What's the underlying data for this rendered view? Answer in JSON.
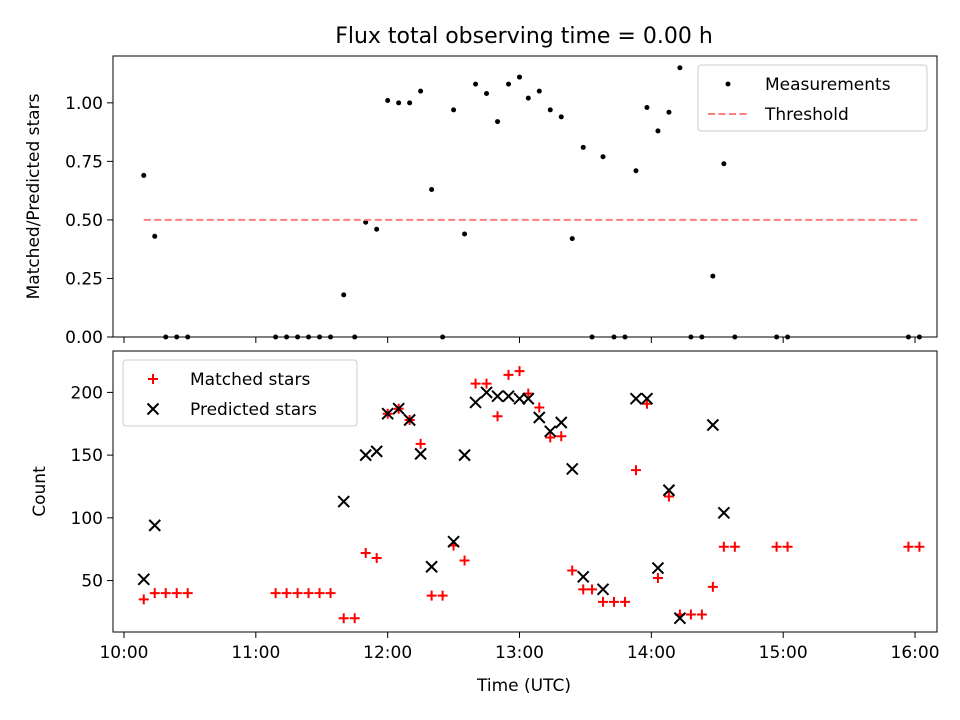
{
  "figure": {
    "title": "Flux total observing time = 0.00 h"
  },
  "chart_data": [
    {
      "type": "scatter",
      "ylabel": "Matched/Predicted stars",
      "xlabel": "",
      "xlim": [
        "09:55",
        "16:10"
      ],
      "ylim": [
        0,
        1.2
      ],
      "x_ticks": [
        "10:00",
        "11:00",
        "12:00",
        "13:00",
        "14:00",
        "15:00",
        "16:00"
      ],
      "y_ticks": [
        0,
        0.25,
        0.5,
        0.75,
        1.0
      ],
      "y_tick_labels": [
        "0.00",
        "0.25",
        "0.50",
        "0.75",
        "1.00"
      ],
      "grid": false,
      "legend_position": "upper right",
      "series": [
        {
          "name": "Measurements",
          "kind": "scatter",
          "marker": "dot",
          "color": "#000000",
          "points": [
            [
              "10:09",
              0.69
            ],
            [
              "10:14",
              0.43
            ],
            [
              "10:19",
              0.0
            ],
            [
              "10:24",
              0.0
            ],
            [
              "10:29",
              0.0
            ],
            [
              "11:09",
              0.0
            ],
            [
              "11:14",
              0.0
            ],
            [
              "11:19",
              0.0
            ],
            [
              "11:24",
              0.0
            ],
            [
              "11:29",
              0.0
            ],
            [
              "11:34",
              0.0
            ],
            [
              "11:40",
              0.18
            ],
            [
              "11:45",
              0.0
            ],
            [
              "11:50",
              0.49
            ],
            [
              "11:55",
              0.46
            ],
            [
              "12:00",
              1.01
            ],
            [
              "12:05",
              1.0
            ],
            [
              "12:10",
              1.0
            ],
            [
              "12:15",
              1.05
            ],
            [
              "12:20",
              0.63
            ],
            [
              "12:25",
              0.0
            ],
            [
              "12:30",
              0.97
            ],
            [
              "12:35",
              0.44
            ],
            [
              "12:40",
              1.08
            ],
            [
              "12:45",
              1.04
            ],
            [
              "12:50",
              0.92
            ],
            [
              "12:55",
              1.08
            ],
            [
              "13:00",
              1.11
            ],
            [
              "13:04",
              1.02
            ],
            [
              "13:09",
              1.05
            ],
            [
              "13:14",
              0.97
            ],
            [
              "13:19",
              0.94
            ],
            [
              "13:24",
              0.42
            ],
            [
              "13:29",
              0.81
            ],
            [
              "13:33",
              0.0
            ],
            [
              "13:38",
              0.77
            ],
            [
              "13:43",
              0.0
            ],
            [
              "13:48",
              0.0
            ],
            [
              "13:53",
              0.71
            ],
            [
              "13:58",
              0.98
            ],
            [
              "14:03",
              0.88
            ],
            [
              "14:08",
              0.96
            ],
            [
              "14:13",
              1.15
            ],
            [
              "14:18",
              0.0
            ],
            [
              "14:23",
              0.0
            ],
            [
              "14:28",
              0.26
            ],
            [
              "14:33",
              0.74
            ],
            [
              "14:38",
              0.0
            ],
            [
              "14:57",
              0.0
            ],
            [
              "15:02",
              0.0
            ],
            [
              "15:57",
              0.0
            ],
            [
              "16:02",
              0.0
            ]
          ]
        },
        {
          "name": "Threshold",
          "kind": "line",
          "style": "dashed",
          "color": "#ff7f7f",
          "points": [
            [
              "10:09",
              0.5
            ],
            [
              "16:02",
              0.5
            ]
          ]
        }
      ]
    },
    {
      "type": "scatter",
      "ylabel": "Count",
      "xlabel": "Time (UTC)",
      "xlim": [
        "09:55",
        "16:10"
      ],
      "ylim": [
        9,
        233
      ],
      "x_ticks": [
        "10:00",
        "11:00",
        "12:00",
        "13:00",
        "14:00",
        "15:00",
        "16:00"
      ],
      "y_ticks": [
        50,
        100,
        150,
        200
      ],
      "y_tick_labels": [
        "50",
        "100",
        "150",
        "200"
      ],
      "grid": false,
      "legend_position": "upper left",
      "series": [
        {
          "name": "Matched stars",
          "kind": "scatter",
          "marker": "plus",
          "color": "#ff0000",
          "points": [
            [
              "10:09",
              35
            ],
            [
              "10:14",
              40
            ],
            [
              "10:19",
              40
            ],
            [
              "10:24",
              40
            ],
            [
              "10:29",
              40
            ],
            [
              "11:09",
              40
            ],
            [
              "11:14",
              40
            ],
            [
              "11:19",
              40
            ],
            [
              "11:24",
              40
            ],
            [
              "11:29",
              40
            ],
            [
              "11:34",
              40
            ],
            [
              "11:40",
              20
            ],
            [
              "11:45",
              20
            ],
            [
              "11:50",
              72
            ],
            [
              "11:55",
              68
            ],
            [
              "12:00",
              183
            ],
            [
              "12:05",
              187
            ],
            [
              "12:10",
              178
            ],
            [
              "12:15",
              159
            ],
            [
              "12:20",
              38
            ],
            [
              "12:25",
              38
            ],
            [
              "12:30",
              78
            ],
            [
              "12:35",
              66
            ],
            [
              "12:40",
              207
            ],
            [
              "12:45",
              207
            ],
            [
              "12:50",
              181
            ],
            [
              "12:55",
              214
            ],
            [
              "13:00",
              217
            ],
            [
              "13:04",
              199
            ],
            [
              "13:09",
              188
            ],
            [
              "13:14",
              164
            ],
            [
              "13:19",
              165
            ],
            [
              "13:24",
              58
            ],
            [
              "13:29",
              43
            ],
            [
              "13:33",
              43
            ],
            [
              "13:38",
              33
            ],
            [
              "13:43",
              33
            ],
            [
              "13:48",
              33
            ],
            [
              "13:53",
              138
            ],
            [
              "13:58",
              191
            ],
            [
              "14:03",
              52
            ],
            [
              "14:08",
              117
            ],
            [
              "14:13",
              23
            ],
            [
              "14:18",
              23
            ],
            [
              "14:23",
              23
            ],
            [
              "14:28",
              45
            ],
            [
              "14:33",
              77
            ],
            [
              "14:38",
              77
            ],
            [
              "14:57",
              77
            ],
            [
              "15:02",
              77
            ],
            [
              "15:57",
              77
            ],
            [
              "16:02",
              77
            ]
          ]
        },
        {
          "name": "Predicted stars",
          "kind": "scatter",
          "marker": "x",
          "color": "#000000",
          "points": [
            [
              "10:09",
              51
            ],
            [
              "10:14",
              94
            ],
            [
              "11:40",
              113
            ],
            [
              "11:50",
              150
            ],
            [
              "11:55",
              153
            ],
            [
              "12:00",
              183
            ],
            [
              "12:05",
              187
            ],
            [
              "12:10",
              178
            ],
            [
              "12:15",
              151
            ],
            [
              "12:20",
              61
            ],
            [
              "12:30",
              81
            ],
            [
              "12:35",
              150
            ],
            [
              "12:40",
              192
            ],
            [
              "12:45",
              200
            ],
            [
              "12:50",
              197
            ],
            [
              "12:55",
              197
            ],
            [
              "13:00",
              195
            ],
            [
              "13:04",
              195
            ],
            [
              "13:09",
              180
            ],
            [
              "13:14",
              169
            ],
            [
              "13:19",
              176
            ],
            [
              "13:24",
              139
            ],
            [
              "13:29",
              53
            ],
            [
              "13:38",
              43
            ],
            [
              "13:53",
              195
            ],
            [
              "13:58",
              195
            ],
            [
              "14:03",
              60
            ],
            [
              "14:08",
              122
            ],
            [
              "14:13",
              20
            ],
            [
              "14:28",
              174
            ],
            [
              "14:33",
              104
            ]
          ]
        }
      ]
    }
  ]
}
